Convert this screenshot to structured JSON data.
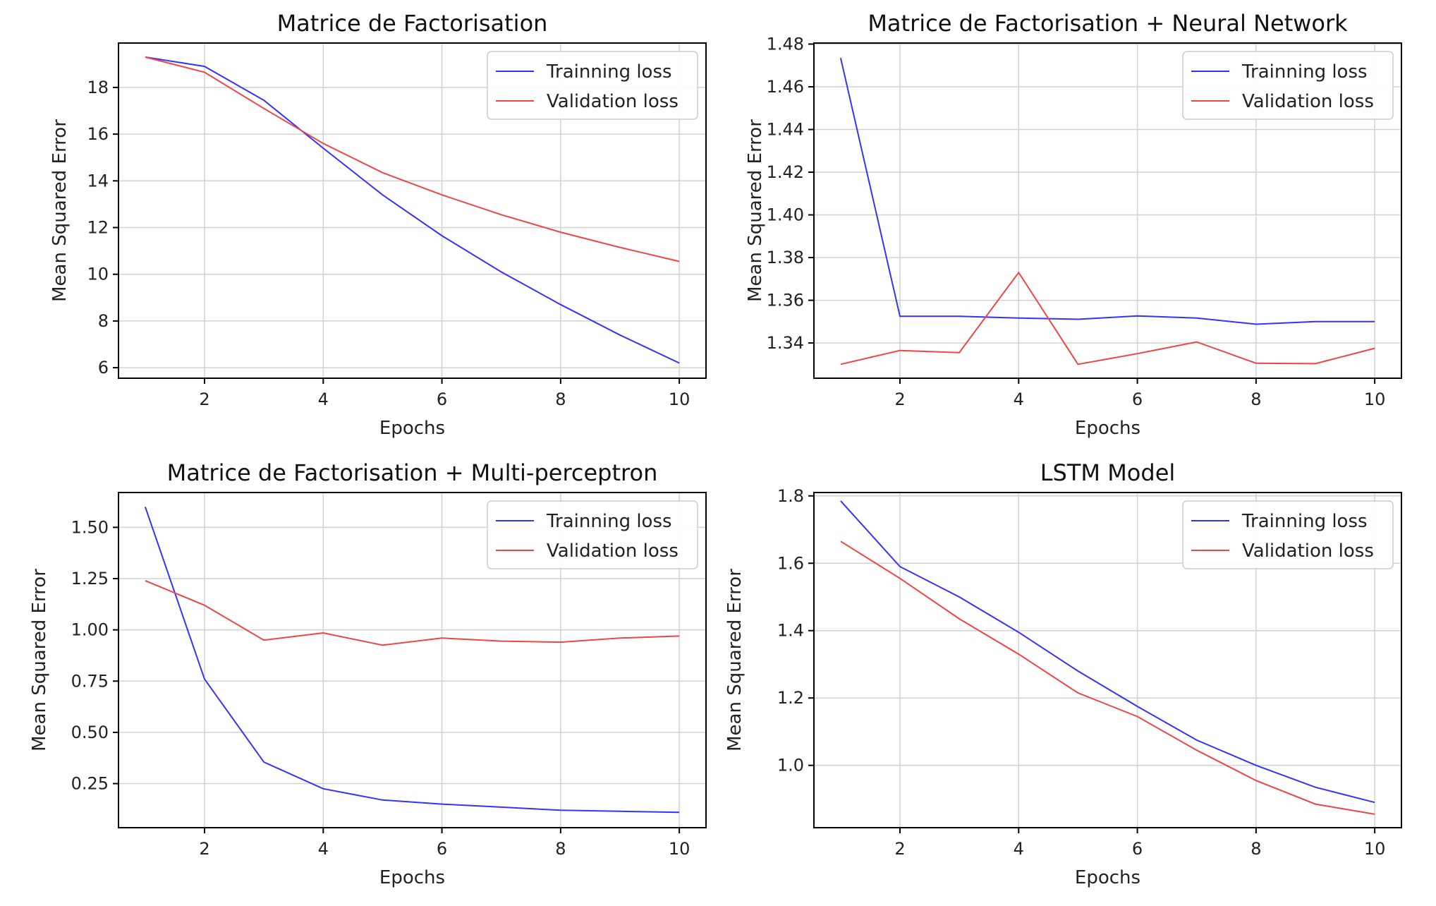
{
  "colors": {
    "train": "#3333ff",
    "validation": "#ef4545"
  },
  "chart_data": [
    {
      "type": "line",
      "title": "Matrice de Factorisation",
      "xlabel": "Epochs",
      "ylabel": "Mean Squared Error",
      "x": [
        1,
        2,
        3,
        4,
        5,
        6,
        7,
        8,
        9,
        10
      ],
      "xlim": [
        0.55,
        10.45
      ],
      "ylim": [
        5.55,
        19.9
      ],
      "xticks": [
        2,
        4,
        6,
        8,
        10
      ],
      "yticks": [
        6,
        8,
        10,
        12,
        14,
        16,
        18
      ],
      "grid": true,
      "legend": "top-right",
      "series": [
        {
          "name": "Trainning loss",
          "color": "#3333ff",
          "values": [
            19.3,
            18.9,
            17.45,
            15.4,
            13.4,
            11.65,
            10.1,
            8.7,
            7.4,
            6.2
          ]
        },
        {
          "name": "Validation loss",
          "color": "#ef4545",
          "values": [
            19.3,
            18.65,
            17.1,
            15.6,
            14.35,
            13.4,
            12.55,
            11.8,
            11.15,
            10.55
          ]
        }
      ]
    },
    {
      "type": "line",
      "title": "Matrice de Factorisation + Neural Network",
      "xlabel": "Epochs",
      "ylabel": "Mean Squared Error",
      "x": [
        1,
        2,
        3,
        4,
        5,
        6,
        7,
        8,
        9,
        10
      ],
      "xlim": [
        0.55,
        10.45
      ],
      "ylim": [
        1.3235,
        1.4805
      ],
      "xticks": [
        2,
        4,
        6,
        8,
        10
      ],
      "yticks": [
        1.34,
        1.36,
        1.38,
        1.4,
        1.42,
        1.44,
        1.46,
        1.48
      ],
      "ytick_labels": [
        "1.34",
        "1.36",
        "1.38",
        "1.40",
        "1.42",
        "1.44",
        "1.46",
        "1.48"
      ],
      "grid": true,
      "legend": "top-right",
      "series": [
        {
          "name": "Trainning loss",
          "color": "#3333ff",
          "values": [
            1.4735,
            1.3525,
            1.3525,
            1.3517,
            1.3511,
            1.3527,
            1.3517,
            1.3488,
            1.35,
            1.35
          ]
        },
        {
          "name": "Validation loss",
          "color": "#ef4545",
          "values": [
            1.33,
            1.3365,
            1.3355,
            1.373,
            1.33,
            1.335,
            1.3405,
            1.3305,
            1.3303,
            1.3375
          ]
        }
      ]
    },
    {
      "type": "line",
      "title": "Matrice de Factorisation + Multi-perceptron",
      "xlabel": "Epochs",
      "ylabel": "Mean Squared Error",
      "x": [
        1,
        2,
        3,
        4,
        5,
        6,
        7,
        8,
        9,
        10
      ],
      "xlim": [
        0.55,
        10.45
      ],
      "ylim": [
        0.035,
        1.67
      ],
      "xticks": [
        2,
        4,
        6,
        8,
        10
      ],
      "yticks": [
        0.25,
        0.5,
        0.75,
        1.0,
        1.25,
        1.5
      ],
      "ytick_labels": [
        "0.25",
        "0.50",
        "0.75",
        "1.00",
        "1.25",
        "1.50"
      ],
      "grid": true,
      "legend": "top-right",
      "series": [
        {
          "name": "Trainning loss",
          "color": "#3333ff",
          "values": [
            1.6,
            0.76,
            0.355,
            0.225,
            0.17,
            0.15,
            0.135,
            0.12,
            0.115,
            0.11
          ]
        },
        {
          "name": "Validation loss",
          "color": "#ef4545",
          "values": [
            1.24,
            1.12,
            0.95,
            0.985,
            0.925,
            0.96,
            0.945,
            0.94,
            0.96,
            0.97
          ]
        }
      ]
    },
    {
      "type": "line",
      "title": "LSTM Model",
      "xlabel": "Epochs",
      "ylabel": "Mean Squared Error",
      "x": [
        1,
        2,
        3,
        4,
        5,
        6,
        7,
        8,
        9,
        10
      ],
      "xlim": [
        0.55,
        10.45
      ],
      "ylim": [
        0.815,
        1.81
      ],
      "xticks": [
        2,
        4,
        6,
        8,
        10
      ],
      "yticks": [
        1.0,
        1.2,
        1.4,
        1.6,
        1.8
      ],
      "ytick_labels": [
        "1.0",
        "1.2",
        "1.4",
        "1.6",
        "1.8"
      ],
      "grid": true,
      "legend": "top-right",
      "series": [
        {
          "name": "Trainning loss",
          "color": "#3333ff",
          "values": [
            1.785,
            1.59,
            1.5,
            1.395,
            1.28,
            1.175,
            1.075,
            1.0,
            0.935,
            0.89
          ]
        },
        {
          "name": "Validation loss",
          "color": "#ef4545",
          "values": [
            1.665,
            1.555,
            1.435,
            1.33,
            1.215,
            1.145,
            1.045,
            0.955,
            0.885,
            0.855
          ]
        }
      ]
    }
  ]
}
